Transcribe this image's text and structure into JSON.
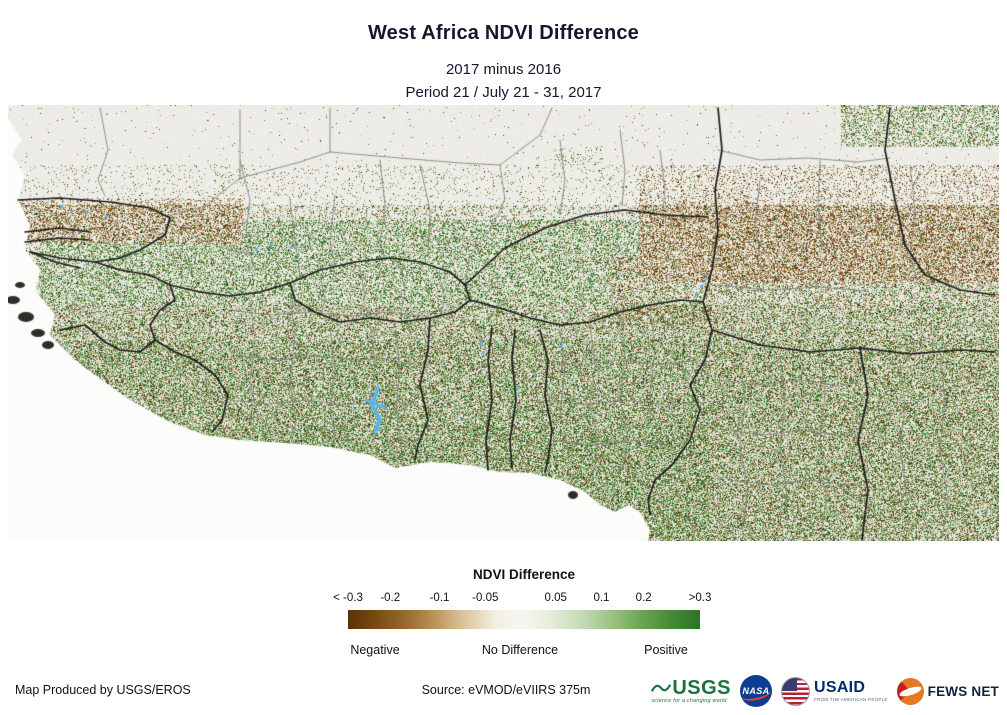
{
  "header": {
    "title": "West Africa NDVI Difference",
    "subtitle_years": "2017 minus 2016",
    "subtitle_period": "Period 21 / July 21 - 31, 2017"
  },
  "legend": {
    "title": "NDVI Difference",
    "ticks": [
      "< -0.3",
      "-0.2",
      "-0.1",
      "-0.05",
      "0.05",
      "0.1",
      "0.2",
      ">0.3"
    ],
    "categories": [
      "Negative",
      "No Difference",
      "Positive"
    ],
    "gradient": [
      "#5a3208",
      "#7a4a14",
      "#9a6c30",
      "#bd955c",
      "#ddc49c",
      "#f3efe4",
      "#f7f6f1",
      "#e3ecda",
      "#c2d9b2",
      "#9ac282",
      "#6ca654",
      "#458934",
      "#2a7524"
    ]
  },
  "footer": {
    "produced_by": "Map Produced by USGS/EROS",
    "source": "Source: eVMOD/eVIIRS 375m"
  },
  "logos": {
    "usgs": {
      "name": "USGS",
      "tagline": "science for a changing world",
      "color": "#1a7340"
    },
    "nasa": {
      "name": "NASA",
      "color": "#0b3d91"
    },
    "usaid": {
      "name": "USAID",
      "tagline": "FROM THE AMERICAN PEOPLE",
      "color": "#002a6c"
    },
    "fewsnet": {
      "name": "FEWS NET",
      "color": "#13233f",
      "accent": "#e87722"
    }
  },
  "map_palette": {
    "land_base": "#ebe9e4",
    "ocean": "#fcfcfb",
    "negative_speckle": "#7a4c16",
    "positive_speckle": "#3f7e2e",
    "water": "#57b8e8",
    "country_border": "#1c1c1c",
    "admin_border": "#80807a"
  }
}
